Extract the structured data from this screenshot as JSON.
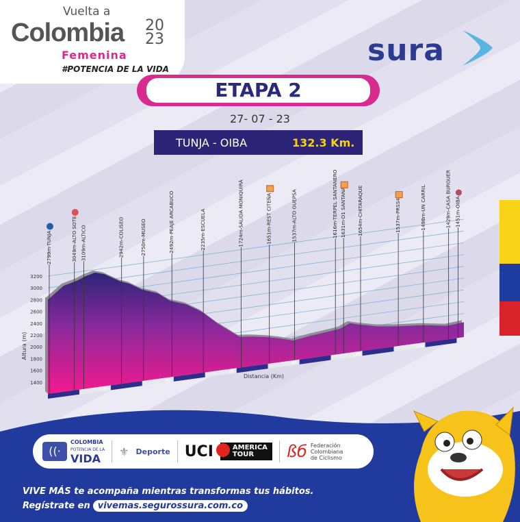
{
  "logo": {
    "line1": "Vuelta a",
    "line2": "Colombia",
    "year": "20 23",
    "line3": "Femenina",
    "hashtag": "#POTENCIA DE LA VIDA"
  },
  "sponsor": {
    "name": "sura"
  },
  "stage": {
    "title": "ETAPA 2",
    "date": "27- 07 - 23",
    "route": "TUNJA - OIBA",
    "distance": "132.3 Km."
  },
  "flag_colors": [
    "#f7d417",
    "#1e3da0",
    "#d8232a"
  ],
  "colors": {
    "profile_top": "#2d2478",
    "profile_bottom": "#f0168c",
    "brand_pink": "#d82a8f",
    "navy": "#203a9e"
  },
  "chart_data": {
    "type": "area",
    "ylabel": "Altura (m)",
    "xlabel": "Distancia (Km)",
    "ylim": [
      1400,
      3200
    ],
    "xlim": [
      0,
      132.3
    ],
    "y_ticks": [
      3200,
      3000,
      2800,
      2600,
      2400,
      2200,
      2000,
      1800,
      1600,
      1400
    ],
    "x_ticks": [
      10,
      20,
      30,
      40,
      50,
      60,
      70,
      80,
      90,
      100,
      110,
      120,
      130
    ],
    "grid": true,
    "profile": [
      [
        0,
        2799
      ],
      [
        5,
        3000
      ],
      [
        9,
        3049
      ],
      [
        12,
        3109
      ],
      [
        15,
        3150
      ],
      [
        18,
        3100
      ],
      [
        23,
        2942
      ],
      [
        26,
        2880
      ],
      [
        30,
        2750
      ],
      [
        35,
        2650
      ],
      [
        39,
        2492
      ],
      [
        44,
        2400
      ],
      [
        49,
        2235
      ],
      [
        54,
        2000
      ],
      [
        61,
        1724
      ],
      [
        65,
        1700
      ],
      [
        70,
        1651
      ],
      [
        74,
        1600
      ],
      [
        78,
        1537
      ],
      [
        84,
        1580
      ],
      [
        91,
        1616
      ],
      [
        93,
        1631
      ],
      [
        96,
        1700
      ],
      [
        99,
        1654
      ],
      [
        105,
        1580
      ],
      [
        111,
        1537
      ],
      [
        119,
        1498
      ],
      [
        127,
        1429
      ],
      [
        132.3,
        1451
      ]
    ],
    "waypoints": [
      {
        "km": 0,
        "label": "2799m-TUNJA",
        "icon": "start-icon"
      },
      {
        "km": 8,
        "label": "3049m-ALTO SOTE",
        "icon": "climb-icon"
      },
      {
        "km": 11,
        "label": "3109m-ALTICO"
      },
      {
        "km": 23,
        "label": "2942m-COLISEO"
      },
      {
        "km": 30,
        "label": "2750m-MUSEO"
      },
      {
        "km": 39,
        "label": "2492m-PEAJE ARCABUCO"
      },
      {
        "km": 49,
        "label": "2235m-ESCUELA"
      },
      {
        "km": 61,
        "label": "1724m-SALIDA MONIQUIRÁ"
      },
      {
        "km": 70,
        "label": "1651m-REST CITEÑA",
        "icon": "sprint-icon"
      },
      {
        "km": 78,
        "label": "1537m-ALTO GUEPSA"
      },
      {
        "km": 91,
        "label": "1616m-TERPEL SANTANERO"
      },
      {
        "km": 93,
        "label": "1631m-D1 SANTANA",
        "icon": "sprint-icon"
      },
      {
        "km": 99,
        "label": "1654m-CHITARAQUE"
      },
      {
        "km": 111,
        "label": "1537m-PRSS4",
        "icon": "sprint-icon"
      },
      {
        "km": 119,
        "label": "1498m-UN CARRIL"
      },
      {
        "km": 127,
        "label": "1429m-CASA BURGUER"
      },
      {
        "km": 130,
        "label": "1451m-OIBA",
        "icon": "finish-icon"
      }
    ]
  },
  "partners": {
    "vida_top": "COLOMBIA",
    "vida_mid": "POTENCIA DE LA",
    "vida_big": "VIDA",
    "deporte": "Deporte",
    "uci": "UCI",
    "america_tour": "AMERICA TOUR",
    "fed": "Federación Colombiana de Ciclismo"
  },
  "footer": {
    "line1": "VIVE MÁS te acompaña mientras transformas tus hábitos.",
    "line2_prefix": "Regístrate en",
    "url": "vivemas.segurossura.com.co"
  }
}
